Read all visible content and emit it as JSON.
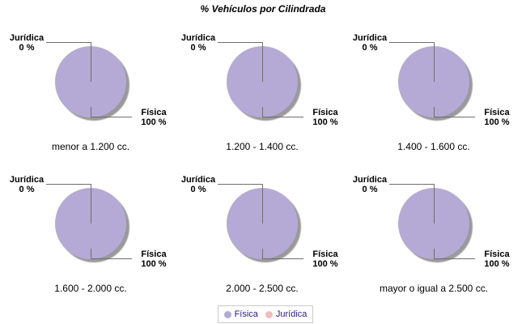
{
  "header": {
    "title": "% Vehículos por Cilindrada"
  },
  "chart_data": [
    {
      "type": "pie",
      "title": "menor a 1.200 cc.",
      "labels": [
        "Física",
        "Jurídica"
      ],
      "values": [
        100,
        0
      ],
      "value_labels": [
        "100 %",
        "0 %"
      ],
      "colors": [
        "#b5aad5",
        "#f5bac1"
      ]
    },
    {
      "type": "pie",
      "title": "1.200 - 1.400 cc.",
      "labels": [
        "Física",
        "Jurídica"
      ],
      "values": [
        100,
        0
      ],
      "value_labels": [
        "100 %",
        "0 %"
      ],
      "colors": [
        "#b5aad5",
        "#f5bac1"
      ]
    },
    {
      "type": "pie",
      "title": "1.400 - 1.600 cc.",
      "labels": [
        "Física",
        "Jurídica"
      ],
      "values": [
        100,
        0
      ],
      "value_labels": [
        "100 %",
        "0 %"
      ],
      "colors": [
        "#b5aad5",
        "#f5bac1"
      ]
    },
    {
      "type": "pie",
      "title": "1.600 - 2.000 cc.",
      "labels": [
        "Física",
        "Jurídica"
      ],
      "values": [
        100,
        0
      ],
      "value_labels": [
        "100 %",
        "0 %"
      ],
      "colors": [
        "#b5aad5",
        "#f5bac1"
      ]
    },
    {
      "type": "pie",
      "title": "2.000 - 2.500 cc.",
      "labels": [
        "Física",
        "Jurídica"
      ],
      "values": [
        100,
        0
      ],
      "value_labels": [
        "100 %",
        "0 %"
      ],
      "colors": [
        "#b5aad5",
        "#f5bac1"
      ]
    },
    {
      "type": "pie",
      "title": "mayor o igual a 2.500 cc.",
      "labels": [
        "Física",
        "Jurídica"
      ],
      "values": [
        100,
        0
      ],
      "value_labels": [
        "100 %",
        "0 %"
      ],
      "colors": [
        "#b5aad5",
        "#f5bac1"
      ]
    }
  ],
  "legend": {
    "items": [
      {
        "label": "Física",
        "color": "#b5aad5"
      },
      {
        "label": "Jurídica",
        "color": "#f5bac1"
      }
    ]
  },
  "colors": {
    "pie_fill": "#b5aad5",
    "pie_shadow": "#9a9a9a",
    "leader_line": "#6e6e6e",
    "legend_text": "#2d1a7e",
    "legend_border": "#cbcbcb",
    "background": "#ffffff"
  }
}
